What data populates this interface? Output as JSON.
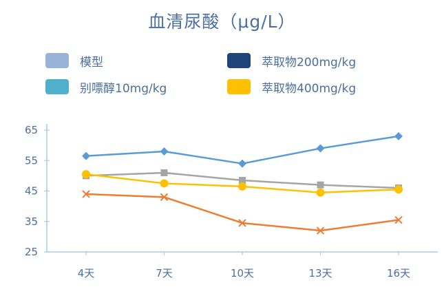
{
  "chart_data": {
    "type": "line",
    "title": "血清尿酸（μg/L）",
    "xlabel": "",
    "ylabel": "",
    "categories": [
      "4天",
      "7天",
      "10天",
      "13天",
      "16天"
    ],
    "ylim": [
      25,
      65
    ],
    "yticks": [
      25,
      35,
      45,
      55,
      65
    ],
    "grid": false,
    "legend_position": "top",
    "legend": [
      {
        "label": "模型",
        "color": "#98b2d8"
      },
      {
        "label": "萃取物200mg/kg",
        "color": "#1f4479"
      },
      {
        "label": "别嘌醇10mg/kg",
        "color": "#4fb0cb"
      },
      {
        "label": "萃取物400mg/kg",
        "color": "#ffc000"
      }
    ],
    "series": [
      {
        "color": "#5b9bd5",
        "marker": "diamond",
        "values": [
          56.5,
          58,
          54,
          59,
          63
        ]
      },
      {
        "color": "#a5a5a5",
        "marker": "square",
        "values": [
          50,
          51,
          48.5,
          47,
          46
        ]
      },
      {
        "color": "#ffc000",
        "marker": "circle",
        "values": [
          50.5,
          47.5,
          46.5,
          44.5,
          45.5
        ]
      },
      {
        "color": "#ed7d31",
        "marker": "x",
        "values": [
          44,
          43,
          34.5,
          32,
          35.5
        ]
      }
    ]
  }
}
